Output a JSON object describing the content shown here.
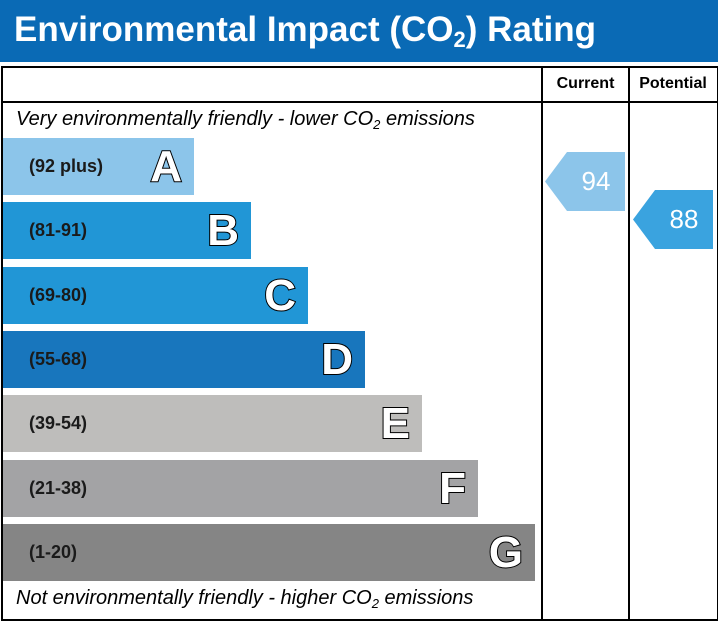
{
  "title": {
    "main": "Environmental Impact (CO",
    "sub": "2",
    "end": ") Rating"
  },
  "columns": {
    "current": "Current",
    "potential": "Potential"
  },
  "notes": {
    "top": {
      "pre": "Very environmentally friendly - lower CO",
      "sub": "2",
      "post": " emissions"
    },
    "bottom": {
      "pre": "Not environmentally friendly - higher CO",
      "sub": "2",
      "post": " emissions"
    }
  },
  "chart_data": {
    "type": "bar",
    "categories": [
      "A",
      "B",
      "C",
      "D",
      "E",
      "F",
      "G"
    ],
    "ranges": [
      "(92 plus)",
      "(81-91)",
      "(69-80)",
      "(55-68)",
      "(39-54)",
      "(21-38)",
      "(1-20)"
    ],
    "colors": [
      "#8cc5ea",
      "#2196d6",
      "#2196d6",
      "#1876bd",
      "#bebdbb",
      "#a3a3a5",
      "#858585"
    ],
    "current": {
      "value": "94",
      "band": "A",
      "color": "#8cc5ea"
    },
    "potential": {
      "value": "88",
      "band": "B",
      "color": "#3aa3df"
    }
  }
}
